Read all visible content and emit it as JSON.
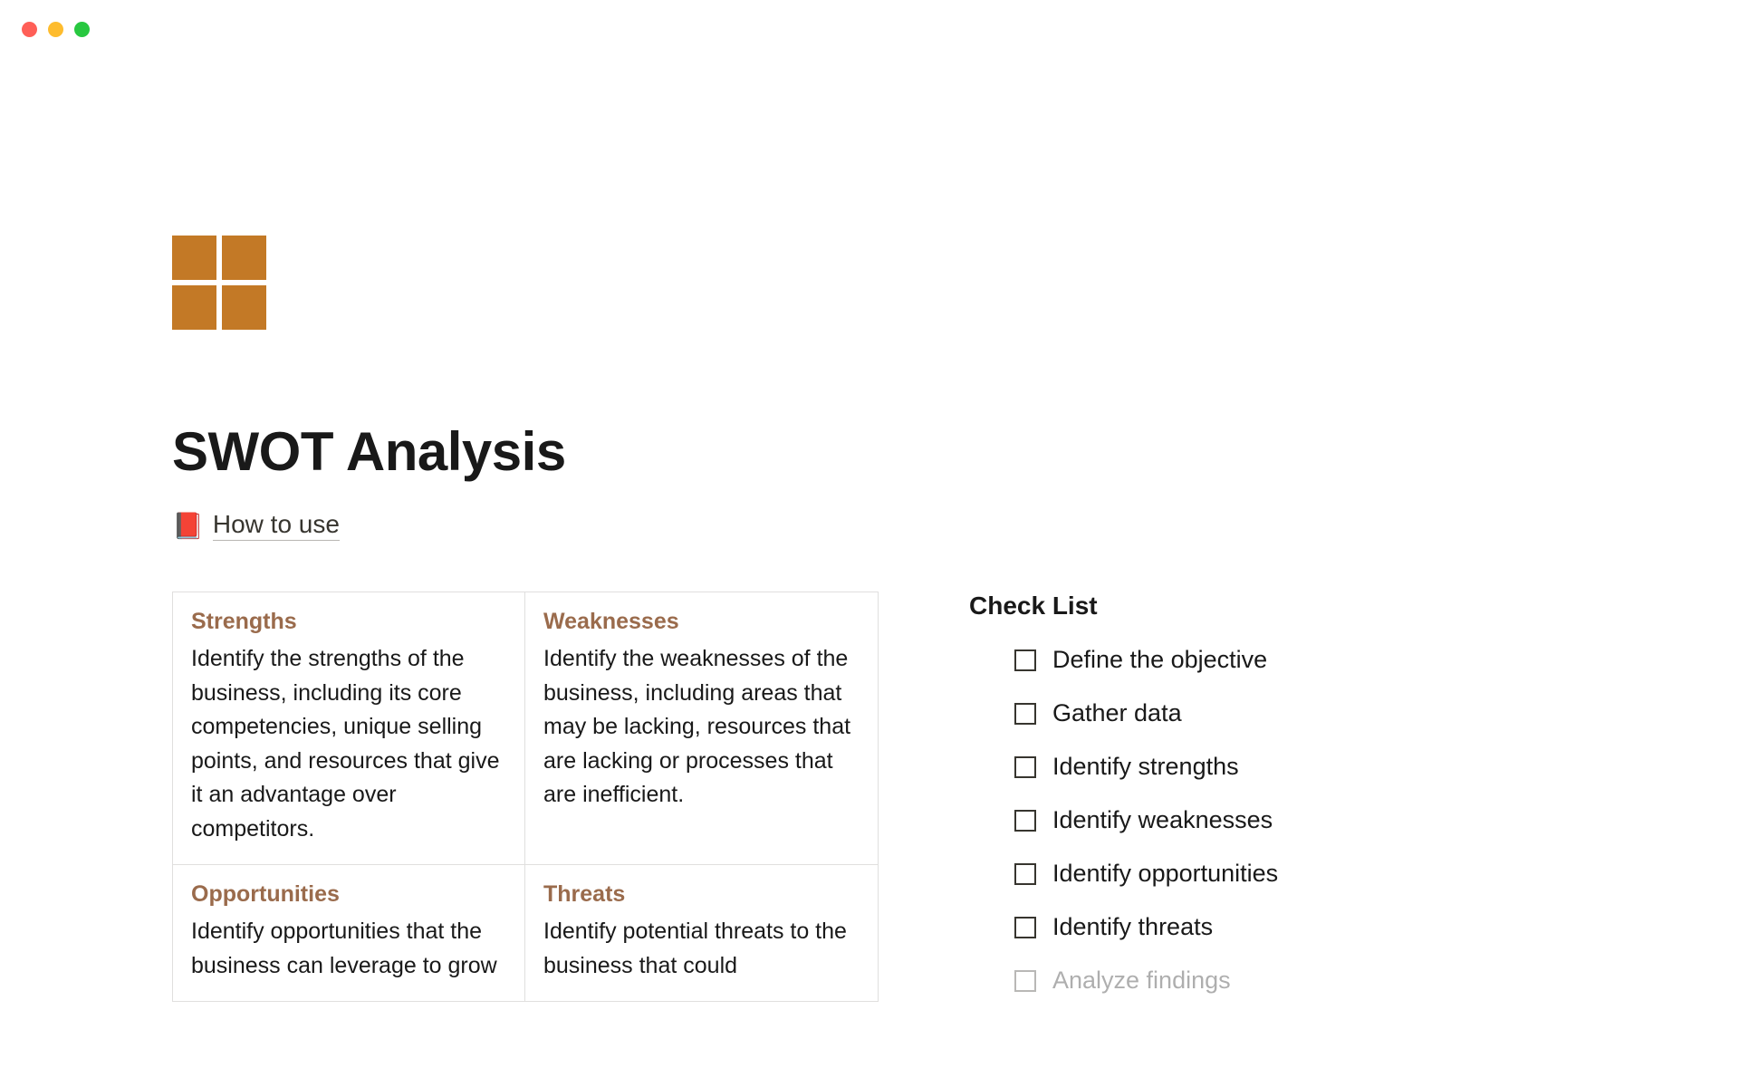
{
  "page": {
    "title": "SWOT Analysis",
    "icon_color": "#c37926"
  },
  "how_to_use": {
    "emoji": "📕",
    "label": "How to use"
  },
  "swot": {
    "strengths": {
      "heading": "Strengths",
      "body": "Identify the strengths of the business, including its core competencies, unique selling points, and resources that give it an advantage over competitors."
    },
    "weaknesses": {
      "heading": "Weaknesses",
      "body": "Identify the weaknesses of the business, including areas that may be lacking, resources that are lacking or processes that are inefficient."
    },
    "opportunities": {
      "heading": "Opportunities",
      "body": "Identify opportunities that the business can leverage to grow"
    },
    "threats": {
      "heading": "Threats",
      "body": "Identify potential threats to the business that could"
    }
  },
  "checklist": {
    "title": "Check List",
    "items": [
      {
        "label": "Define the objective",
        "checked": false
      },
      {
        "label": "Gather data",
        "checked": false
      },
      {
        "label": "Identify strengths",
        "checked": false
      },
      {
        "label": "Identify weaknesses",
        "checked": false
      },
      {
        "label": "Identify opportunities",
        "checked": false
      },
      {
        "label": "Identify threats",
        "checked": false
      },
      {
        "label": "Analyze findings",
        "checked": false
      }
    ]
  },
  "colors": {
    "swot_heading": "#9a6b4c",
    "text": "#191919",
    "border": "#e0dfde",
    "background": "#ffffff"
  }
}
